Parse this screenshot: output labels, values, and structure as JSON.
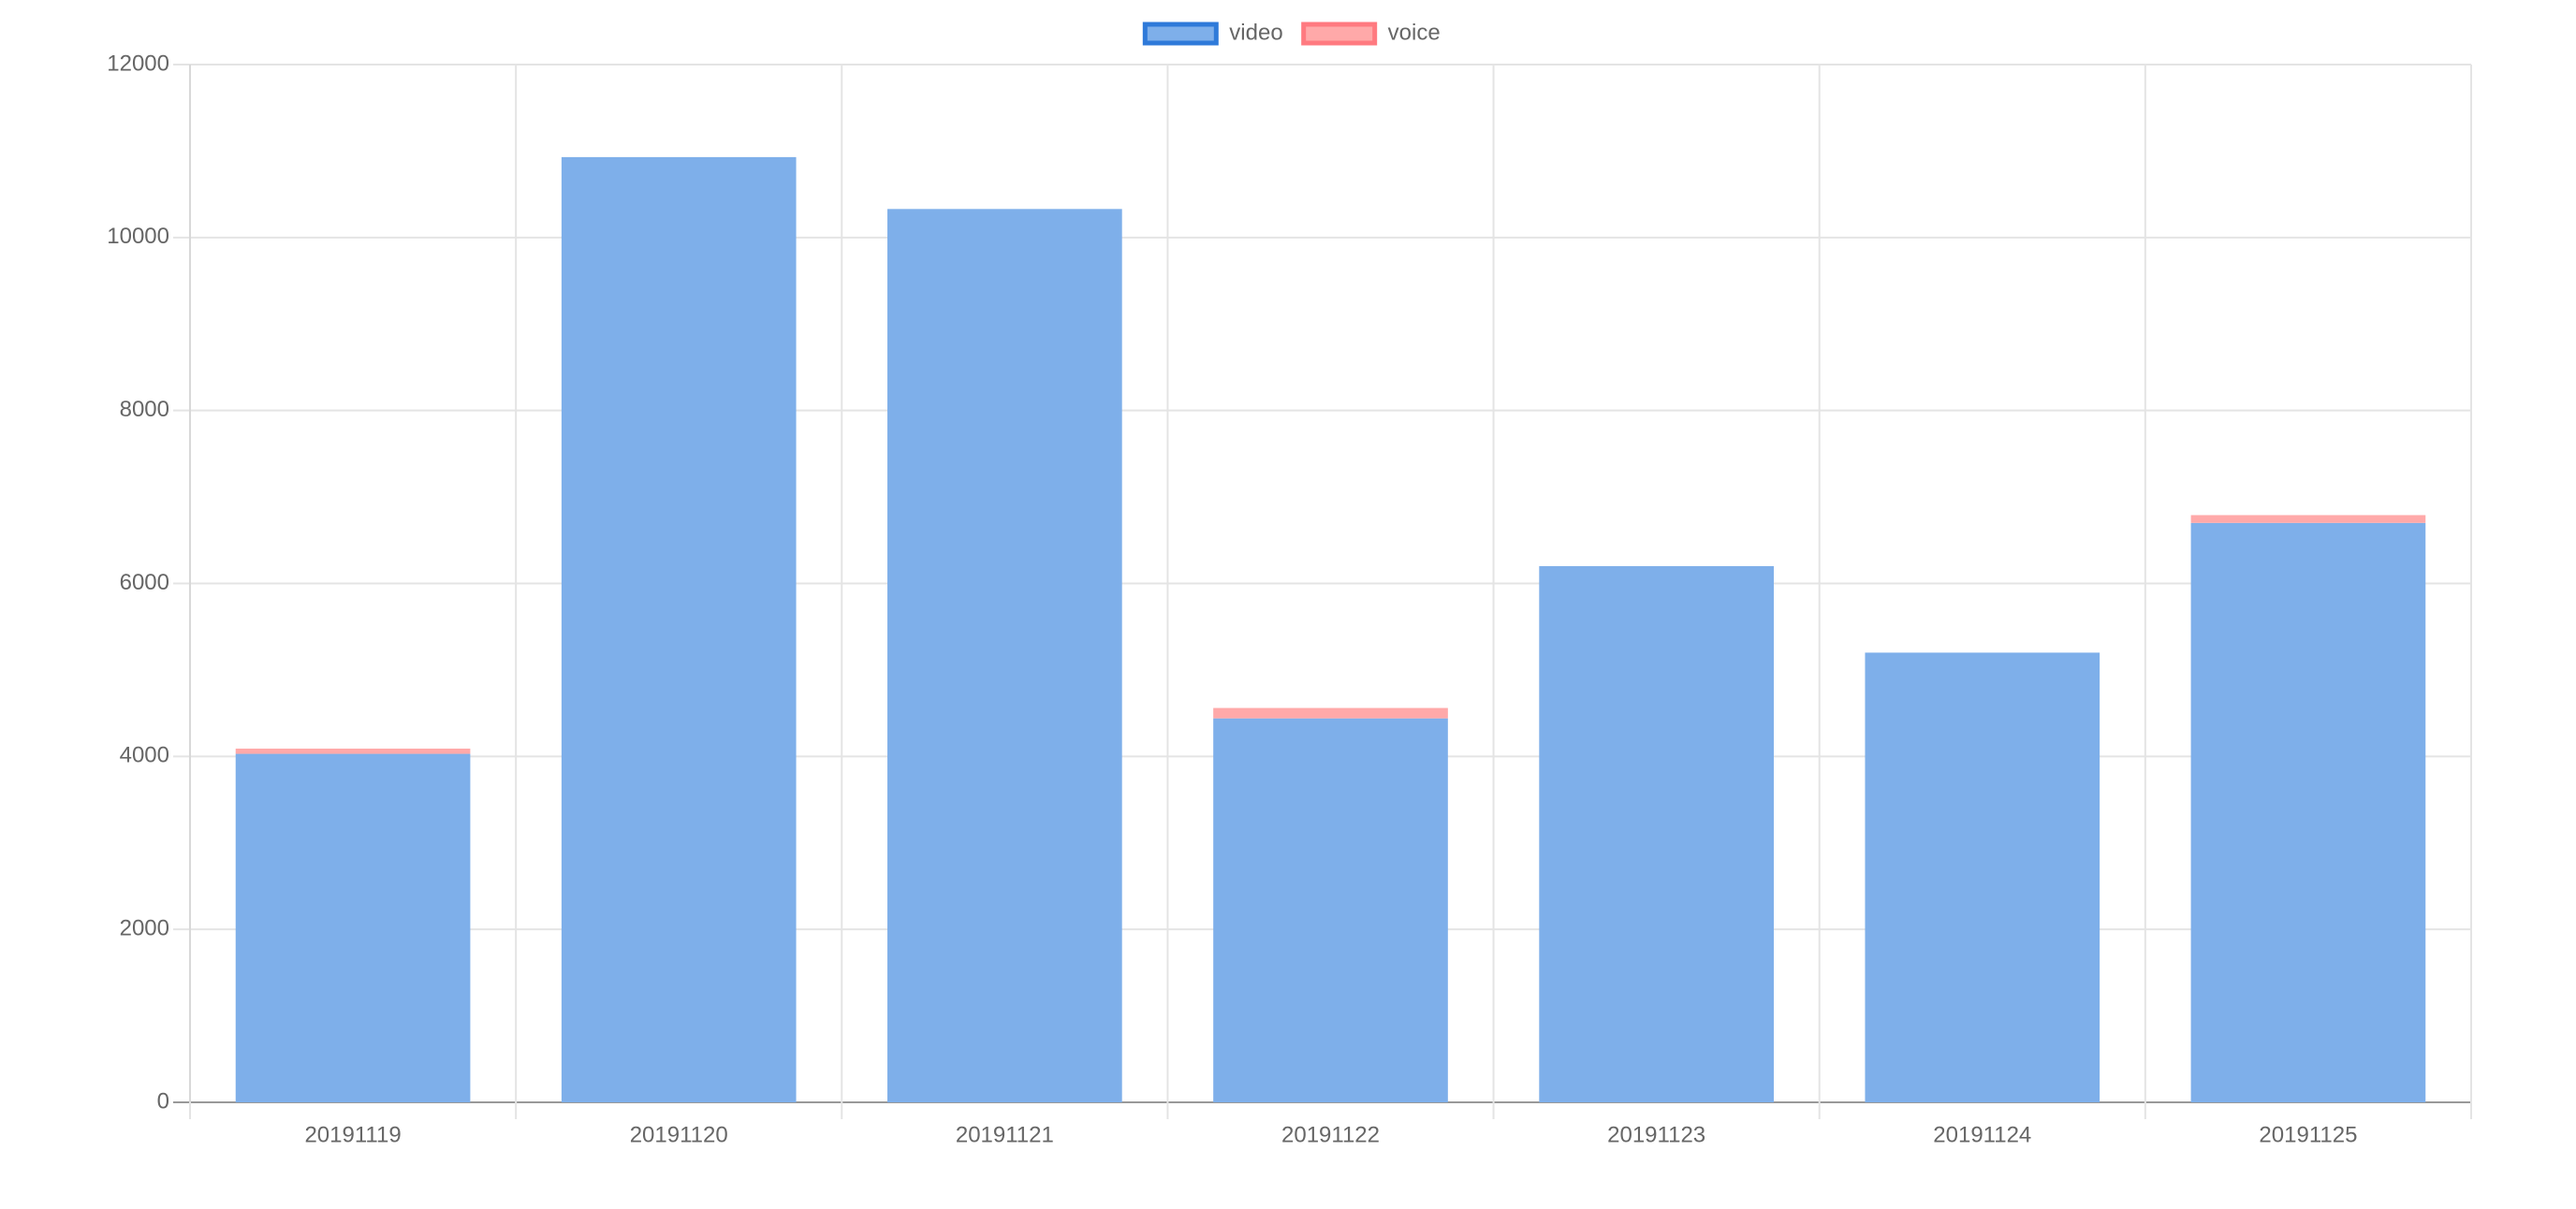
{
  "chart_data": {
    "type": "bar",
    "stacked": true,
    "categories": [
      "20191119",
      "20191120",
      "20191121",
      "20191122",
      "20191123",
      "20191124",
      "20191125"
    ],
    "series": [
      {
        "name": "video",
        "values": [
          4030,
          10930,
          10330,
          4440,
          6200,
          5200,
          6700
        ],
        "color": "#7eafea",
        "border_color": "#2f7ad9"
      },
      {
        "name": "voice",
        "values": [
          60,
          0,
          0,
          120,
          0,
          0,
          90
        ],
        "color": "#ffa9a9",
        "border_color": "#ff7a80"
      }
    ],
    "y_ticks": [
      "0",
      "2000",
      "4000",
      "6000",
      "8000",
      "10000",
      "12000"
    ],
    "ylim": [
      0,
      12000
    ],
    "grid": true,
    "legend_position": "top-center"
  }
}
